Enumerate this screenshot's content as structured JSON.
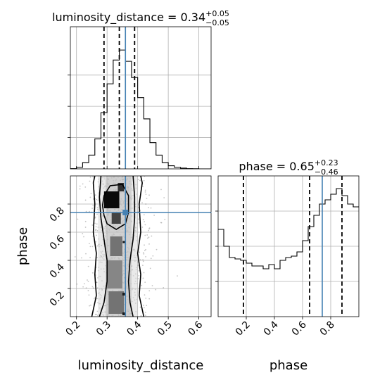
{
  "chart_data": [
    {
      "type": "histogram",
      "panel": "luminosity_distance-marginal",
      "title": "luminosity_distance = 0.34",
      "title_sup": "+0.05",
      "title_sub": "−0.05",
      "xlim": [
        0.18,
        0.64
      ],
      "bins": {
        "edges": [
          0.18,
          0.2,
          0.22,
          0.24,
          0.26,
          0.28,
          0.3,
          0.32,
          0.34,
          0.36,
          0.38,
          0.4,
          0.42,
          0.44,
          0.46,
          0.48,
          0.5,
          0.52,
          0.54,
          0.56,
          0.58,
          0.6,
          0.62,
          0.64
        ],
        "values": [
          0.002,
          0.012,
          0.05,
          0.11,
          0.24,
          0.45,
          0.68,
          0.87,
          0.95,
          0.86,
          0.73,
          0.57,
          0.4,
          0.21,
          0.11,
          0.05,
          0.025,
          0.012,
          0.006,
          0.002,
          0.001,
          0,
          0
        ]
      },
      "ymax": 1.0,
      "quantiles": [
        0.29,
        0.34,
        0.39
      ],
      "truth": 0.36,
      "grid": true
    },
    {
      "type": "histogram",
      "panel": "phase-marginal",
      "title": "phase = 0.65",
      "title_sup": "+0.23",
      "title_sub": "−0.46",
      "xlim": [
        0.0,
        1.0
      ],
      "bins": {
        "edges": [
          0.0,
          0.04,
          0.08,
          0.12,
          0.16,
          0.2,
          0.24,
          0.28,
          0.32,
          0.36,
          0.4,
          0.44,
          0.48,
          0.52,
          0.56,
          0.6,
          0.64,
          0.68,
          0.72,
          0.76,
          0.8,
          0.84,
          0.88,
          0.92,
          0.96,
          1.0
        ],
        "values": [
          0.62,
          0.5,
          0.42,
          0.41,
          0.4,
          0.38,
          0.36,
          0.36,
          0.34,
          0.37,
          0.34,
          0.4,
          0.42,
          0.43,
          0.46,
          0.54,
          0.64,
          0.72,
          0.8,
          0.83,
          0.87,
          0.91,
          0.86,
          0.8,
          0.78
        ]
      },
      "ymax": 1.0,
      "quantiles": [
        0.18,
        0.65,
        0.88
      ],
      "truth": 0.74,
      "grid": true
    },
    {
      "type": "2d-density",
      "panel": "phase-vs-luminosity_distance",
      "xlabel": "luminosity_distance",
      "ylabel": "phase",
      "xlim": [
        0.18,
        0.64
      ],
      "ylim": [
        0.0,
        1.0
      ],
      "xticks": [
        0.2,
        0.3,
        0.4,
        0.5,
        0.6
      ],
      "yticks": [
        0.2,
        0.4,
        0.6,
        0.8
      ],
      "truth": {
        "x": 0.36,
        "y": 0.74
      },
      "contours": [
        {
          "level": "outer",
          "left": [
            [
              0.25,
              0.0
            ],
            [
              0.265,
              0.15
            ],
            [
              0.26,
              0.3
            ],
            [
              0.265,
              0.45
            ],
            [
              0.255,
              0.6
            ],
            [
              0.26,
              0.8
            ],
            [
              0.255,
              0.95
            ],
            [
              0.26,
              1.0
            ]
          ],
          "right": [
            [
              0.42,
              0.0
            ],
            [
              0.405,
              0.15
            ],
            [
              0.41,
              0.3
            ],
            [
              0.4,
              0.45
            ],
            [
              0.41,
              0.6
            ],
            [
              0.405,
              0.8
            ],
            [
              0.415,
              0.95
            ],
            [
              0.41,
              1.0
            ]
          ]
        },
        {
          "level": "middle",
          "left": [
            [
              0.275,
              0.0
            ],
            [
              0.29,
              0.1
            ],
            [
              0.3,
              0.25
            ],
            [
              0.3,
              0.4
            ],
            [
              0.29,
              0.55
            ],
            [
              0.28,
              0.7
            ],
            [
              0.275,
              0.85
            ],
            [
              0.28,
              1.0
            ]
          ],
          "right": [
            [
              0.385,
              0.0
            ],
            [
              0.375,
              0.1
            ],
            [
              0.37,
              0.25
            ],
            [
              0.375,
              0.4
            ],
            [
              0.385,
              0.55
            ],
            [
              0.39,
              0.7
            ],
            [
              0.39,
              0.85
            ],
            [
              0.385,
              1.0
            ]
          ]
        },
        {
          "level": "inner",
          "closed": [
            [
              0.29,
              0.72
            ],
            [
              0.3,
              0.66
            ],
            [
              0.33,
              0.62
            ],
            [
              0.36,
              0.66
            ],
            [
              0.37,
              0.74
            ],
            [
              0.37,
              0.86
            ],
            [
              0.35,
              0.94
            ],
            [
              0.31,
              0.93
            ],
            [
              0.29,
              0.86
            ],
            [
              0.285,
              0.79
            ]
          ]
        }
      ],
      "density_cells": [
        {
          "x": 0.315,
          "y": 0.83,
          "w": 0.05,
          "h": 0.12,
          "level": 1.0
        },
        {
          "x": 0.33,
          "y": 0.7,
          "w": 0.03,
          "h": 0.08,
          "level": 0.7
        },
        {
          "x": 0.345,
          "y": 0.92,
          "w": 0.02,
          "h": 0.06,
          "level": 0.8
        },
        {
          "x": 0.33,
          "y": 0.5,
          "w": 0.04,
          "h": 0.14,
          "level": 0.45
        },
        {
          "x": 0.325,
          "y": 0.3,
          "w": 0.05,
          "h": 0.2,
          "level": 0.35
        },
        {
          "x": 0.33,
          "y": 0.1,
          "w": 0.05,
          "h": 0.16,
          "level": 0.45
        },
        {
          "x": 0.355,
          "y": 0.16,
          "w": 0.01,
          "h": 0.02,
          "level": 0.9
        },
        {
          "x": 0.355,
          "y": 0.02,
          "w": 0.01,
          "h": 0.02,
          "level": 0.9
        },
        {
          "x": 0.355,
          "y": 0.53,
          "w": 0.008,
          "h": 0.015,
          "level": 0.9
        }
      ]
    }
  ],
  "phase_axis": {
    "xlabel": "phase",
    "xticks": [
      0.2,
      0.4,
      0.6,
      0.8
    ]
  },
  "colors": {
    "hist": "#000000",
    "truth": "#4682b4",
    "grid": "#b0b0b0",
    "background": "#ffffff"
  }
}
